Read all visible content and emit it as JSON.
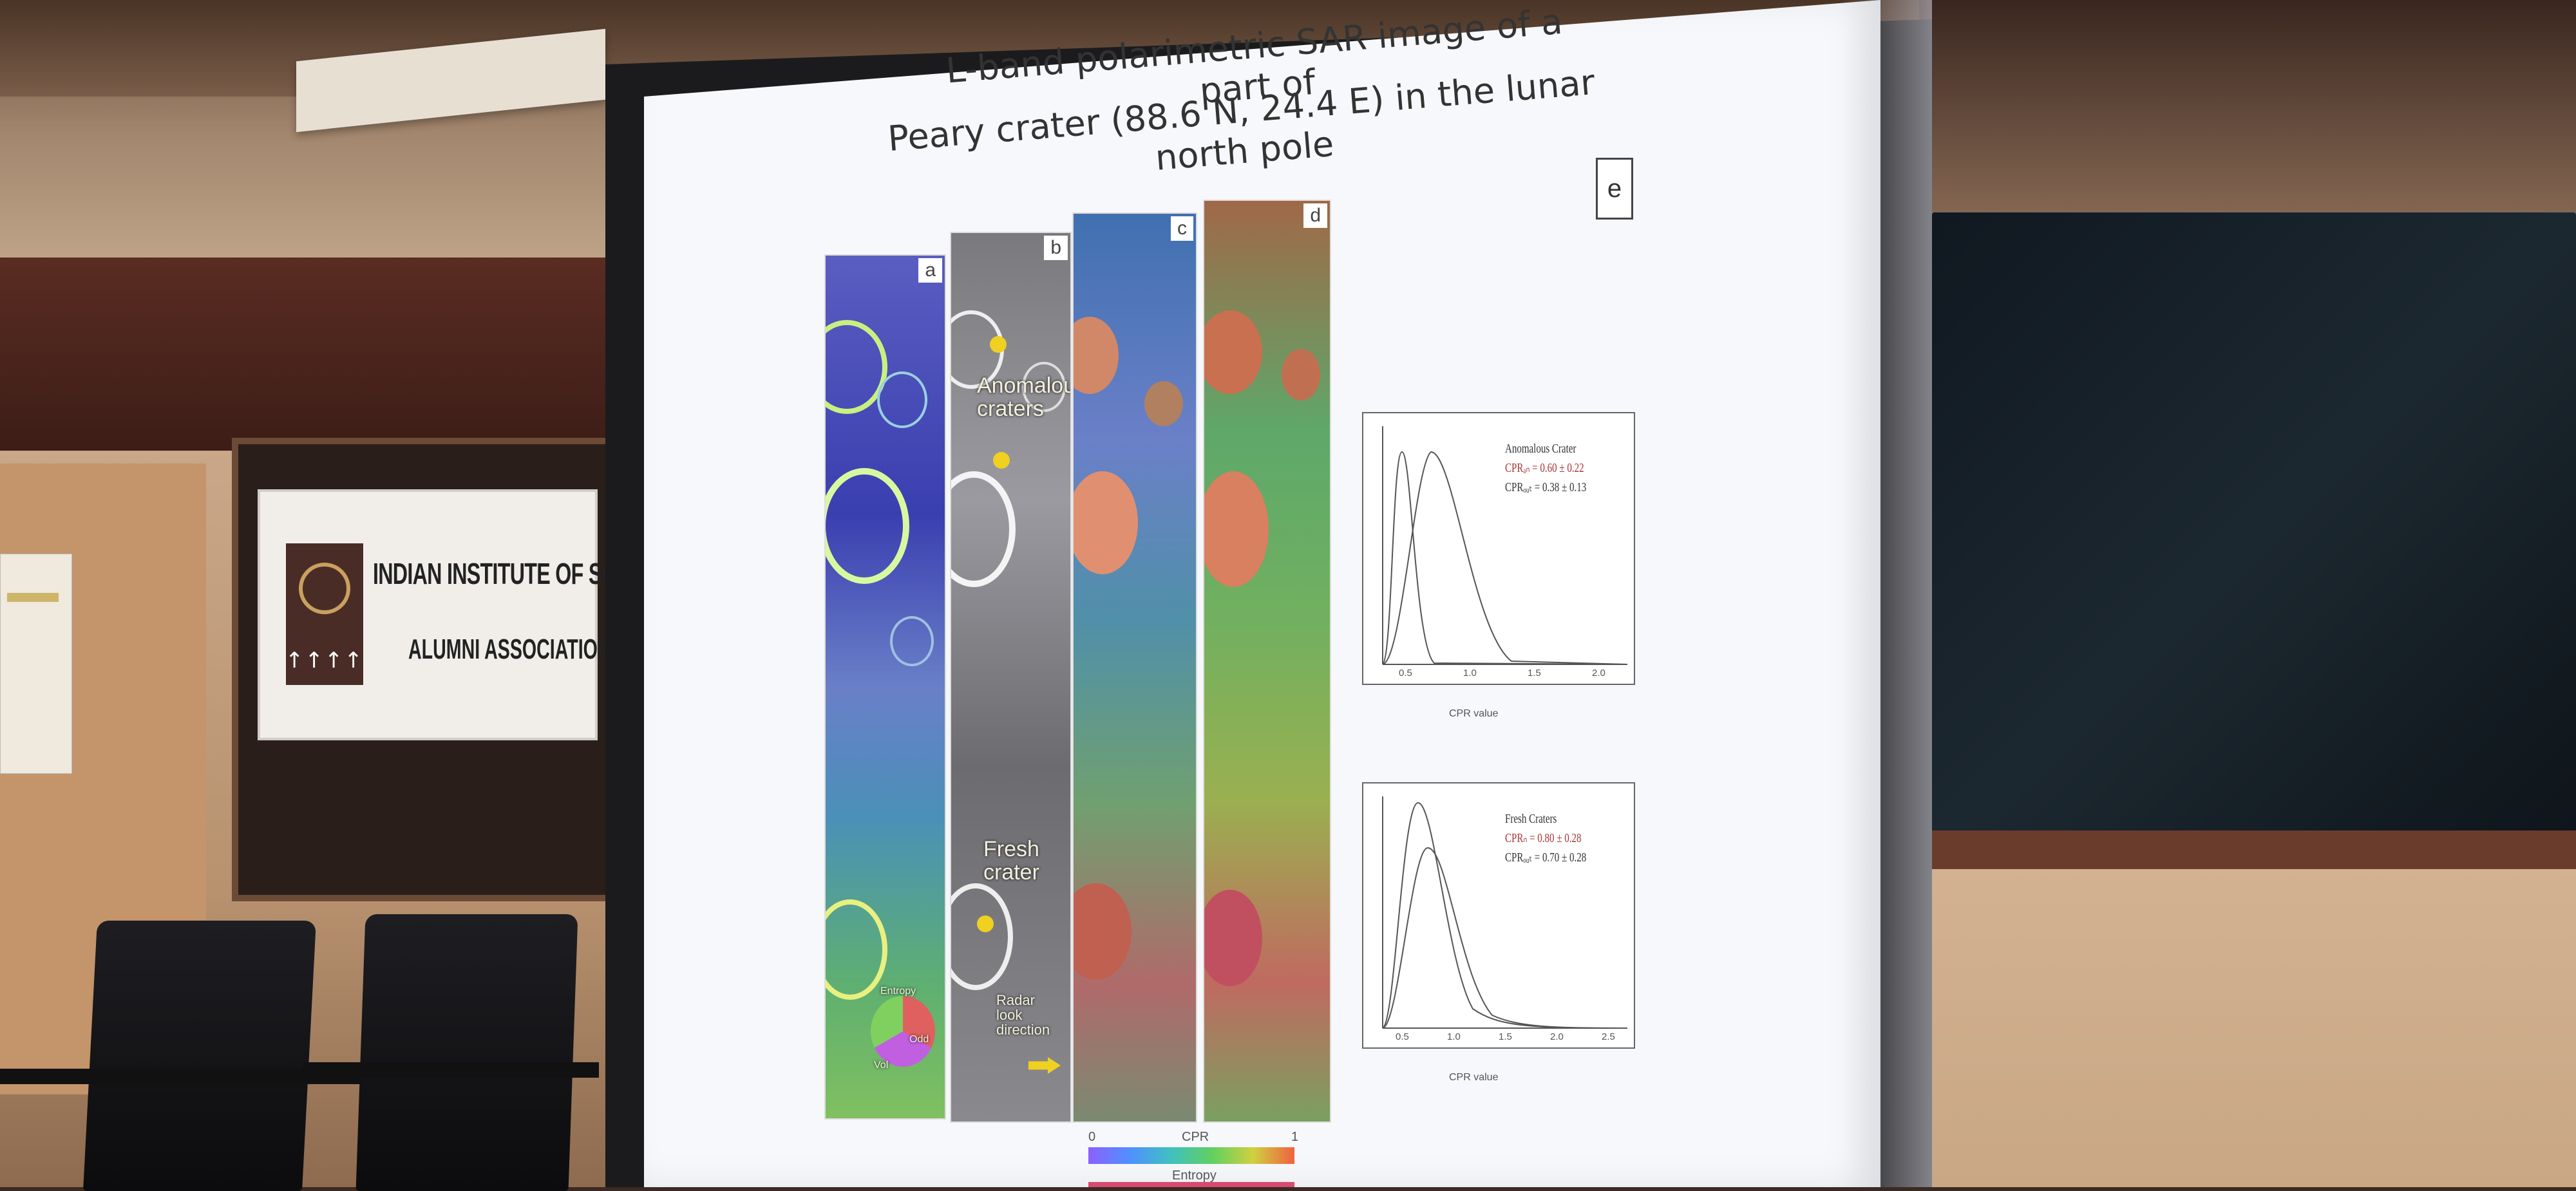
{
  "slide": {
    "title_line1": "L-band polarimetric SAR image of a part of",
    "title_line2": "Peary crater (88.6 N, 24.4 E) in the lunar north pole",
    "figure_label_e": "e",
    "panel_labels": [
      "a",
      "b",
      "c",
      "d"
    ],
    "annotations": {
      "anomalous": "Anomalous craters",
      "fresh": "Fresh crater",
      "wheel_entropy": "Entropy",
      "wheel_odd": "Odd",
      "wheel_vol": "Vol",
      "radar_look": "Radar look direction"
    },
    "colorbar": {
      "min": "0",
      "max": "1",
      "label": "CPR",
      "label2": "Entropy"
    },
    "plots": [
      {
        "title": "Anomalous Crater",
        "line1": "CPRₐₙ = 0.60 ± 0.22",
        "line2": "CPRₒᵤₜ = 0.38 ± 0.13",
        "xlabel": "CPR value",
        "xticks": [
          "0.5",
          "1.0",
          "1.5",
          "2.0"
        ]
      },
      {
        "title": "Fresh Craters",
        "line1": "CPRₙ = 0.80 ± 0.28",
        "line2": "CPRₒᵤₜ = 0.70 ± 0.28",
        "xlabel": "CPR value",
        "xticks": [
          "0.5",
          "1.0",
          "1.5",
          "2.0",
          "2.5"
        ]
      }
    ]
  },
  "room": {
    "banner_line1": "INDIAN INSTITUTE OF SCI",
    "banner_line2": "ALUMNI ASSOCIATION",
    "banner_logo_text": "↑↑↑↑"
  },
  "colors": {
    "screen_bg": "#f7f8fb",
    "wall": "#c9a788",
    "banner_bg": "#f1eeea",
    "plot_curve": "#555555"
  }
}
